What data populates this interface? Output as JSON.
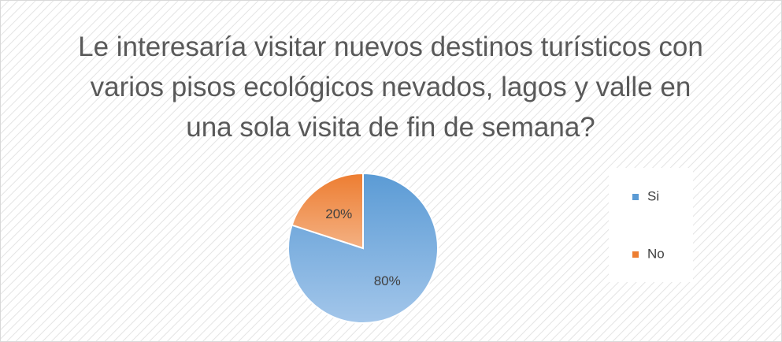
{
  "chart_data": {
    "type": "pie",
    "title": "Le interesaría visitar nuevos destinos turísticos con varios pisos ecológicos nevados, lagos y valle en una sola visita de fin de semana?",
    "categories": [
      "Si",
      "No"
    ],
    "values": [
      80,
      20
    ],
    "value_labels": [
      "80%",
      "20%"
    ],
    "colors": [
      "#5b9bd5",
      "#ed7d31"
    ],
    "legend": "right"
  }
}
